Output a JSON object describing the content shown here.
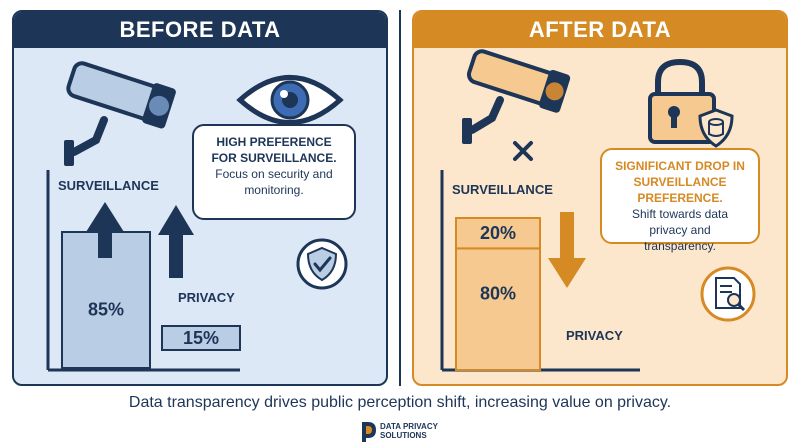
{
  "before": {
    "title": "BEFORE DATA",
    "bubble_head": "HIGH PREFERENCE FOR SURVEILLANCE.",
    "bubble_body": "Focus on security and monitoring."
  },
  "after": {
    "title": "AFTER DATA",
    "bubble_head": "SIGNIFICANT DROP IN SURVEILLANCE PREFERENCE.",
    "bubble_body": "Shift towards data privacy and transparency."
  },
  "chart_data": [
    {
      "type": "bar",
      "categories": [
        "SURVEILLANCE",
        "PRIVACY"
      ],
      "values": [
        85,
        15
      ],
      "value_labels": [
        "85%",
        "15%"
      ],
      "title": "BEFORE DATA",
      "ylim": [
        0,
        100
      ]
    },
    {
      "type": "bar",
      "stacked": true,
      "series": [
        {
          "name": "SURVEILLANCE",
          "values": [
            20
          ],
          "label": "20%"
        },
        {
          "name": "PRIVACY",
          "values": [
            80
          ],
          "label": "80%"
        }
      ],
      "title": "AFTER DATA",
      "ylim": [
        0,
        100
      ]
    }
  ],
  "caption": "Data transparency drives public perception shift, increasing value on privacy.",
  "logo": {
    "line1": "DATA PRIVACY",
    "line2": "SOLUTIONS"
  },
  "colors": {
    "navy": "#1d3557",
    "orange": "#d68a24",
    "before_bg": "#dce8f5",
    "after_bg": "#fce7cc"
  }
}
